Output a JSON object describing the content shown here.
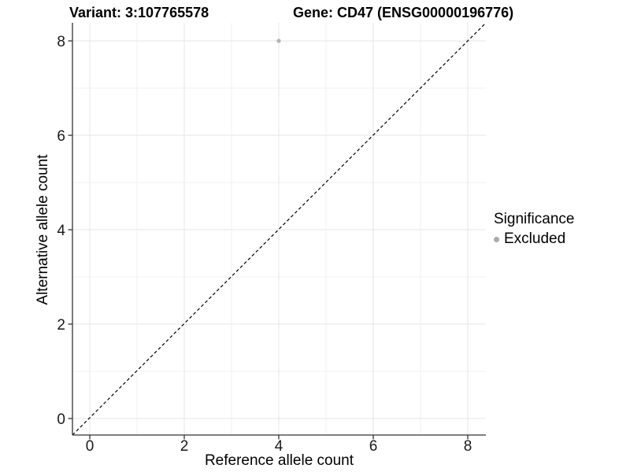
{
  "chart_data": {
    "type": "scatter",
    "title_left": "Variant: 3:107765578",
    "title_right": "Gene: CD47 (ENSG00000196776)",
    "xlabel": "Reference allele count",
    "ylabel": "Alternative allele count",
    "xlim": [
      -0.4,
      8.4
    ],
    "ylim": [
      -0.4,
      8.4
    ],
    "x_ticks": [
      0,
      2,
      4,
      6,
      8
    ],
    "y_ticks": [
      0,
      2,
      4,
      6,
      8
    ],
    "grid": true,
    "grid_interval": 1,
    "points": [
      {
        "x": 4,
        "y": 8,
        "significance": "Excluded"
      }
    ],
    "identity_line": {
      "equation": "y = x",
      "style": "dashed"
    },
    "legend": {
      "title": "Significance",
      "position": "right",
      "entries": [
        {
          "label": "Excluded",
          "color": "#ababab"
        }
      ]
    },
    "colors": {
      "excluded_point": "#b3b3b3",
      "grid_major": "#e6e6e6",
      "grid_minor": "#f0f0f0",
      "axis_line": "#333333",
      "identity_line": "#000000",
      "tick_text": "#1a1a1a"
    }
  }
}
